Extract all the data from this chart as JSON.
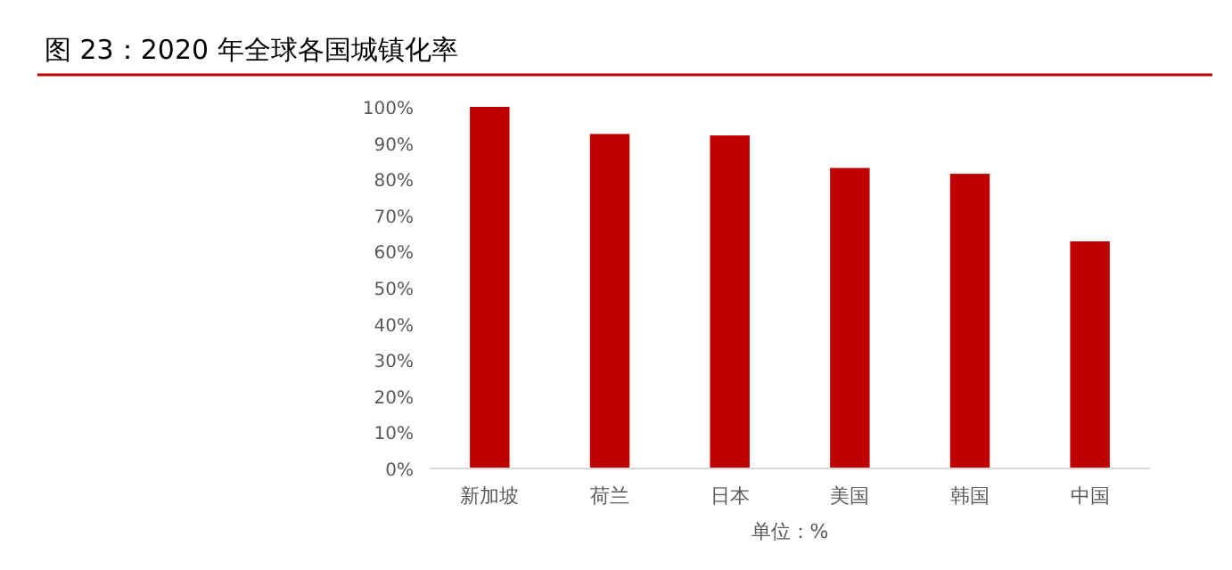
{
  "chart_data": {
    "type": "bar",
    "title": "图 23：2020 年全球各国城镇化率",
    "xlabel": "单位：%",
    "categories": [
      "新加坡",
      "荷兰",
      "日本",
      "美国",
      "韩国",
      "中国"
    ],
    "values": [
      100,
      92.5,
      92.1,
      83.1,
      81.5,
      62.8
    ],
    "color": "#c00000",
    "ylim": [
      0,
      100
    ],
    "yticks": [
      {
        "value": 0,
        "label": "0%"
      },
      {
        "value": 10,
        "label": "10%"
      },
      {
        "value": 20,
        "label": "20%"
      },
      {
        "value": 30,
        "label": "30%"
      },
      {
        "value": 40,
        "label": "40%"
      },
      {
        "value": 50,
        "label": "50%"
      },
      {
        "value": 60,
        "label": "60%"
      },
      {
        "value": 70,
        "label": "70%"
      },
      {
        "value": 80,
        "label": "80%"
      },
      {
        "value": 90,
        "label": "90%"
      },
      {
        "value": 100,
        "label": "100%"
      }
    ]
  }
}
